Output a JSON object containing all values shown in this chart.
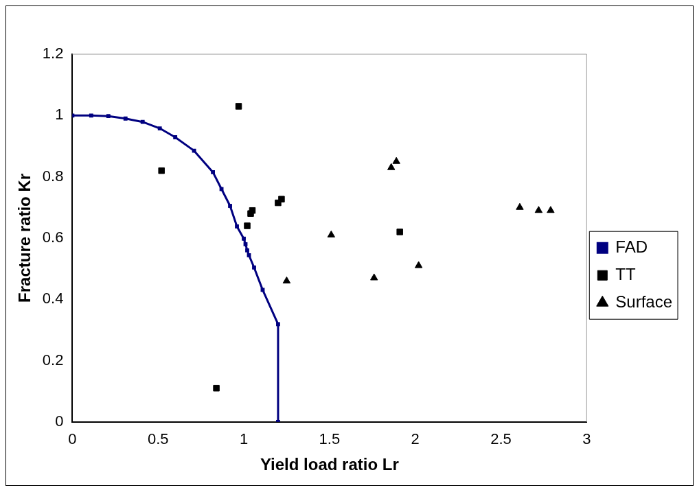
{
  "chart_data": {
    "type": "scatter",
    "xlabel": "Yield load ratio Lr",
    "ylabel": "Fracture ratio Kr",
    "xlim": [
      0,
      3
    ],
    "xticks": [
      0,
      0.5,
      1,
      1.5,
      2,
      2.5,
      3
    ],
    "ylim": [
      0,
      1.2
    ],
    "yticks": [
      0,
      0.2,
      0.4,
      0.6,
      0.8,
      1,
      1.2
    ],
    "grid": false,
    "legend": "right",
    "series": [
      {
        "name": "FAD",
        "type": "line",
        "color": "#000080",
        "marker": "square",
        "x": [
          0,
          0.11,
          0.21,
          0.31,
          0.41,
          0.51,
          0.6,
          0.71,
          0.82,
          0.87,
          0.92,
          0.96,
          1.0,
          1.01,
          1.02,
          1.03,
          1.06,
          1.11,
          1.2,
          1.2
        ],
        "values": [
          1,
          1,
          0.998,
          0.99,
          0.979,
          0.958,
          0.929,
          0.885,
          0.815,
          0.76,
          0.705,
          0.638,
          0.598,
          0.58,
          0.56,
          0.544,
          0.504,
          0.431,
          0.319,
          0
        ]
      },
      {
        "name": "TT",
        "type": "scatter",
        "color": "#000000",
        "marker": "square",
        "x": [
          0.97,
          0.52,
          1.02,
          1.04,
          1.05,
          1.2,
          1.22,
          1.91,
          0.84
        ],
        "values": [
          1.03,
          0.82,
          0.64,
          0.68,
          0.69,
          0.715,
          0.727,
          0.62,
          0.11
        ]
      },
      {
        "name": "Surface",
        "type": "scatter",
        "color": "#000000",
        "marker": "triangle",
        "x": [
          1.89,
          1.86,
          2.61,
          2.72,
          2.79,
          1.51,
          2.02,
          1.76,
          1.25
        ],
        "values": [
          0.85,
          0.83,
          0.7,
          0.69,
          0.69,
          0.61,
          0.51,
          0.47,
          0.46
        ]
      }
    ]
  }
}
